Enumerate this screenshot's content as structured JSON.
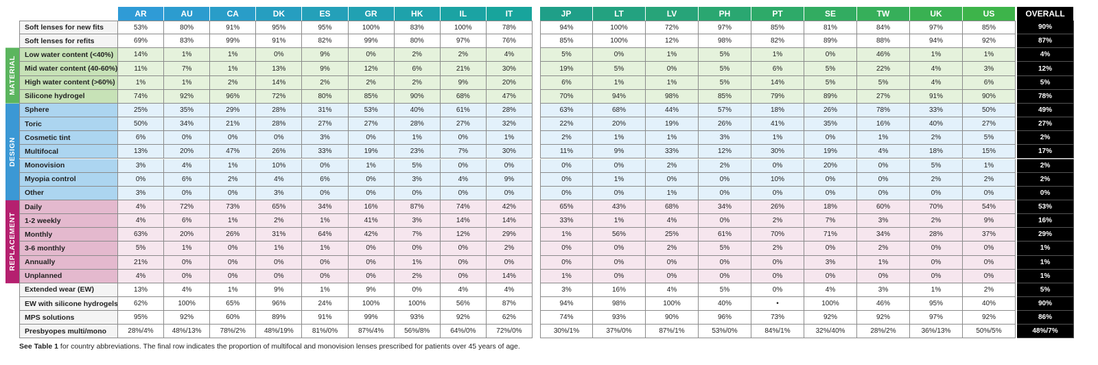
{
  "table": {
    "header": {
      "left": [
        "AR",
        "AU",
        "CA",
        "DK",
        "ES",
        "GR",
        "HK",
        "IL",
        "IT"
      ],
      "right": [
        "JP",
        "LT",
        "LV",
        "PH",
        "PT",
        "SE",
        "TW",
        "UK",
        "US"
      ],
      "overall": "OVERALL"
    },
    "rows_top": [
      {
        "label": "Soft lenses for new fits",
        "left": [
          "53%",
          "80%",
          "91%",
          "95%",
          "95%",
          "100%",
          "83%",
          "100%",
          "78%"
        ],
        "right": [
          "94%",
          "100%",
          "72%",
          "97%",
          "85%",
          "81%",
          "84%",
          "97%",
          "85%"
        ],
        "overall": "90%"
      },
      {
        "label": "Soft lenses for refits",
        "left": [
          "69%",
          "83%",
          "99%",
          "91%",
          "82%",
          "99%",
          "80%",
          "97%",
          "76%"
        ],
        "right": [
          "85%",
          "100%",
          "12%",
          "98%",
          "82%",
          "89%",
          "88%",
          "94%",
          "92%"
        ],
        "overall": "87%"
      }
    ],
    "groups": [
      {
        "label": "MATERIAL",
        "rows": [
          {
            "label": "Low water content (<40%)",
            "left": [
              "14%",
              "1%",
              "1%",
              "0%",
              "9%",
              "0%",
              "2%",
              "2%",
              "4%"
            ],
            "right": [
              "5%",
              "0%",
              "1%",
              "5%",
              "1%",
              "0%",
              "46%",
              "1%",
              "1%"
            ],
            "overall": "4%"
          },
          {
            "label": "Mid water content (40-60%)",
            "left": [
              "11%",
              "7%",
              "1%",
              "13%",
              "9%",
              "12%",
              "6%",
              "21%",
              "30%"
            ],
            "right": [
              "19%",
              "5%",
              "0%",
              "5%",
              "6%",
              "5%",
              "22%",
              "4%",
              "3%"
            ],
            "overall": "12%"
          },
          {
            "label": "High water content (>60%)",
            "left": [
              "1%",
              "1%",
              "2%",
              "14%",
              "2%",
              "2%",
              "2%",
              "9%",
              "20%"
            ],
            "right": [
              "6%",
              "1%",
              "1%",
              "5%",
              "14%",
              "5%",
              "5%",
              "4%",
              "6%"
            ],
            "overall": "5%"
          },
          {
            "label": "Silicone hydrogel",
            "left": [
              "74%",
              "92%",
              "96%",
              "72%",
              "80%",
              "85%",
              "90%",
              "68%",
              "47%"
            ],
            "right": [
              "70%",
              "94%",
              "98%",
              "85%",
              "79%",
              "89%",
              "27%",
              "91%",
              "90%"
            ],
            "overall": "78%"
          }
        ]
      },
      {
        "label": "DESIGN",
        "rows": [
          {
            "label": "Sphere",
            "left": [
              "25%",
              "35%",
              "29%",
              "28%",
              "31%",
              "53%",
              "40%",
              "61%",
              "28%"
            ],
            "right": [
              "63%",
              "68%",
              "44%",
              "57%",
              "18%",
              "26%",
              "78%",
              "33%",
              "50%"
            ],
            "overall": "49%"
          },
          {
            "label": "Toric",
            "left": [
              "50%",
              "34%",
              "21%",
              "28%",
              "27%",
              "27%",
              "28%",
              "27%",
              "32%"
            ],
            "right": [
              "22%",
              "20%",
              "19%",
              "26%",
              "41%",
              "35%",
              "16%",
              "40%",
              "27%"
            ],
            "overall": "27%"
          },
          {
            "label": "Cosmetic tint",
            "left": [
              "6%",
              "0%",
              "0%",
              "0%",
              "3%",
              "0%",
              "1%",
              "0%",
              "1%"
            ],
            "right": [
              "2%",
              "1%",
              "1%",
              "3%",
              "1%",
              "0%",
              "1%",
              "2%",
              "5%"
            ],
            "overall": "2%"
          },
          {
            "label": "Multifocal",
            "left": [
              "13%",
              "20%",
              "47%",
              "26%",
              "33%",
              "19%",
              "23%",
              "7%",
              "30%"
            ],
            "right": [
              "11%",
              "9%",
              "33%",
              "12%",
              "30%",
              "19%",
              "4%",
              "18%",
              "15%"
            ],
            "overall": "17%"
          },
          {
            "label": "Monovision",
            "left": [
              "3%",
              "4%",
              "1%",
              "10%",
              "0%",
              "1%",
              "5%",
              "0%",
              "0%"
            ],
            "right": [
              "0%",
              "0%",
              "2%",
              "2%",
              "0%",
              "20%",
              "0%",
              "5%",
              "1%"
            ],
            "overall": "2%"
          },
          {
            "label": "Myopia control",
            "left": [
              "0%",
              "6%",
              "2%",
              "4%",
              "6%",
              "0%",
              "3%",
              "4%",
              "9%"
            ],
            "right": [
              "0%",
              "1%",
              "0%",
              "0%",
              "10%",
              "0%",
              "0%",
              "2%",
              "2%"
            ],
            "overall": "2%"
          },
          {
            "label": "Other",
            "left": [
              "3%",
              "0%",
              "0%",
              "3%",
              "0%",
              "0%",
              "0%",
              "0%",
              "0%"
            ],
            "right": [
              "0%",
              "0%",
              "1%",
              "0%",
              "0%",
              "0%",
              "0%",
              "0%",
              "0%"
            ],
            "overall": "0%"
          }
        ]
      },
      {
        "label": "REPLACEMENT",
        "rows": [
          {
            "label": "Daily",
            "left": [
              "4%",
              "72%",
              "73%",
              "65%",
              "34%",
              "16%",
              "87%",
              "74%",
              "42%"
            ],
            "right": [
              "65%",
              "43%",
              "68%",
              "34%",
              "26%",
              "18%",
              "60%",
              "70%",
              "54%"
            ],
            "overall": "53%"
          },
          {
            "label": "1-2 weekly",
            "left": [
              "4%",
              "6%",
              "1%",
              "2%",
              "1%",
              "41%",
              "3%",
              "14%",
              "14%"
            ],
            "right": [
              "33%",
              "1%",
              "4%",
              "0%",
              "2%",
              "7%",
              "3%",
              "2%",
              "9%"
            ],
            "overall": "16%"
          },
          {
            "label": "Monthly",
            "left": [
              "63%",
              "20%",
              "26%",
              "31%",
              "64%",
              "42%",
              "7%",
              "12%",
              "29%"
            ],
            "right": [
              "1%",
              "56%",
              "25%",
              "61%",
              "70%",
              "71%",
              "34%",
              "28%",
              "37%"
            ],
            "overall": "29%"
          },
          {
            "label": "3-6 monthly",
            "left": [
              "5%",
              "1%",
              "0%",
              "1%",
              "1%",
              "0%",
              "0%",
              "0%",
              "2%"
            ],
            "right": [
              "0%",
              "0%",
              "2%",
              "5%",
              "2%",
              "0%",
              "2%",
              "0%",
              "0%"
            ],
            "overall": "1%"
          },
          {
            "label": "Annually",
            "left": [
              "21%",
              "0%",
              "0%",
              "0%",
              "0%",
              "0%",
              "1%",
              "0%",
              "0%"
            ],
            "right": [
              "0%",
              "0%",
              "0%",
              "0%",
              "0%",
              "3%",
              "1%",
              "0%",
              "0%"
            ],
            "overall": "1%"
          },
          {
            "label": "Unplanned",
            "left": [
              "4%",
              "0%",
              "0%",
              "0%",
              "0%",
              "0%",
              "2%",
              "0%",
              "14%"
            ],
            "right": [
              "1%",
              "0%",
              "0%",
              "0%",
              "0%",
              "0%",
              "0%",
              "0%",
              "0%"
            ],
            "overall": "1%"
          }
        ]
      }
    ],
    "rows_bottom": [
      {
        "label": "Extended wear (EW)",
        "left": [
          "13%",
          "4%",
          "1%",
          "9%",
          "1%",
          "9%",
          "0%",
          "4%",
          "4%"
        ],
        "right": [
          "3%",
          "16%",
          "4%",
          "5%",
          "0%",
          "4%",
          "3%",
          "1%",
          "2%"
        ],
        "overall": "5%"
      },
      {
        "label": "EW with silicone hydrogels",
        "left": [
          "62%",
          "100%",
          "65%",
          "96%",
          "24%",
          "100%",
          "100%",
          "56%",
          "87%"
        ],
        "right": [
          "94%",
          "98%",
          "100%",
          "40%",
          "•",
          "100%",
          "46%",
          "95%",
          "40%"
        ],
        "overall": "90%"
      },
      {
        "label": "MPS solutions",
        "left": [
          "95%",
          "92%",
          "60%",
          "89%",
          "91%",
          "99%",
          "93%",
          "92%",
          "62%"
        ],
        "right": [
          "74%",
          "93%",
          "90%",
          "96%",
          "73%",
          "92%",
          "92%",
          "97%",
          "92%"
        ],
        "overall": "86%"
      },
      {
        "label": "Presbyopes multi/mono",
        "left": [
          "28%/4%",
          "48%/13%",
          "78%/2%",
          "48%/19%",
          "81%/0%",
          "87%/4%",
          "56%/8%",
          "64%/0%",
          "72%/0%"
        ],
        "right": [
          "30%/1%",
          "37%/0%",
          "87%/1%",
          "53%/0%",
          "84%/1%",
          "32%/40%",
          "28%/2%",
          "36%/13%",
          "50%/5%"
        ],
        "overall": "48%/7%"
      }
    ]
  },
  "footnote": {
    "bold": "See Table 1",
    "text": " for country abbreviations. The final row indicates the proportion of multifocal and monovision lenses prescribed for patients over 45 years of age."
  }
}
